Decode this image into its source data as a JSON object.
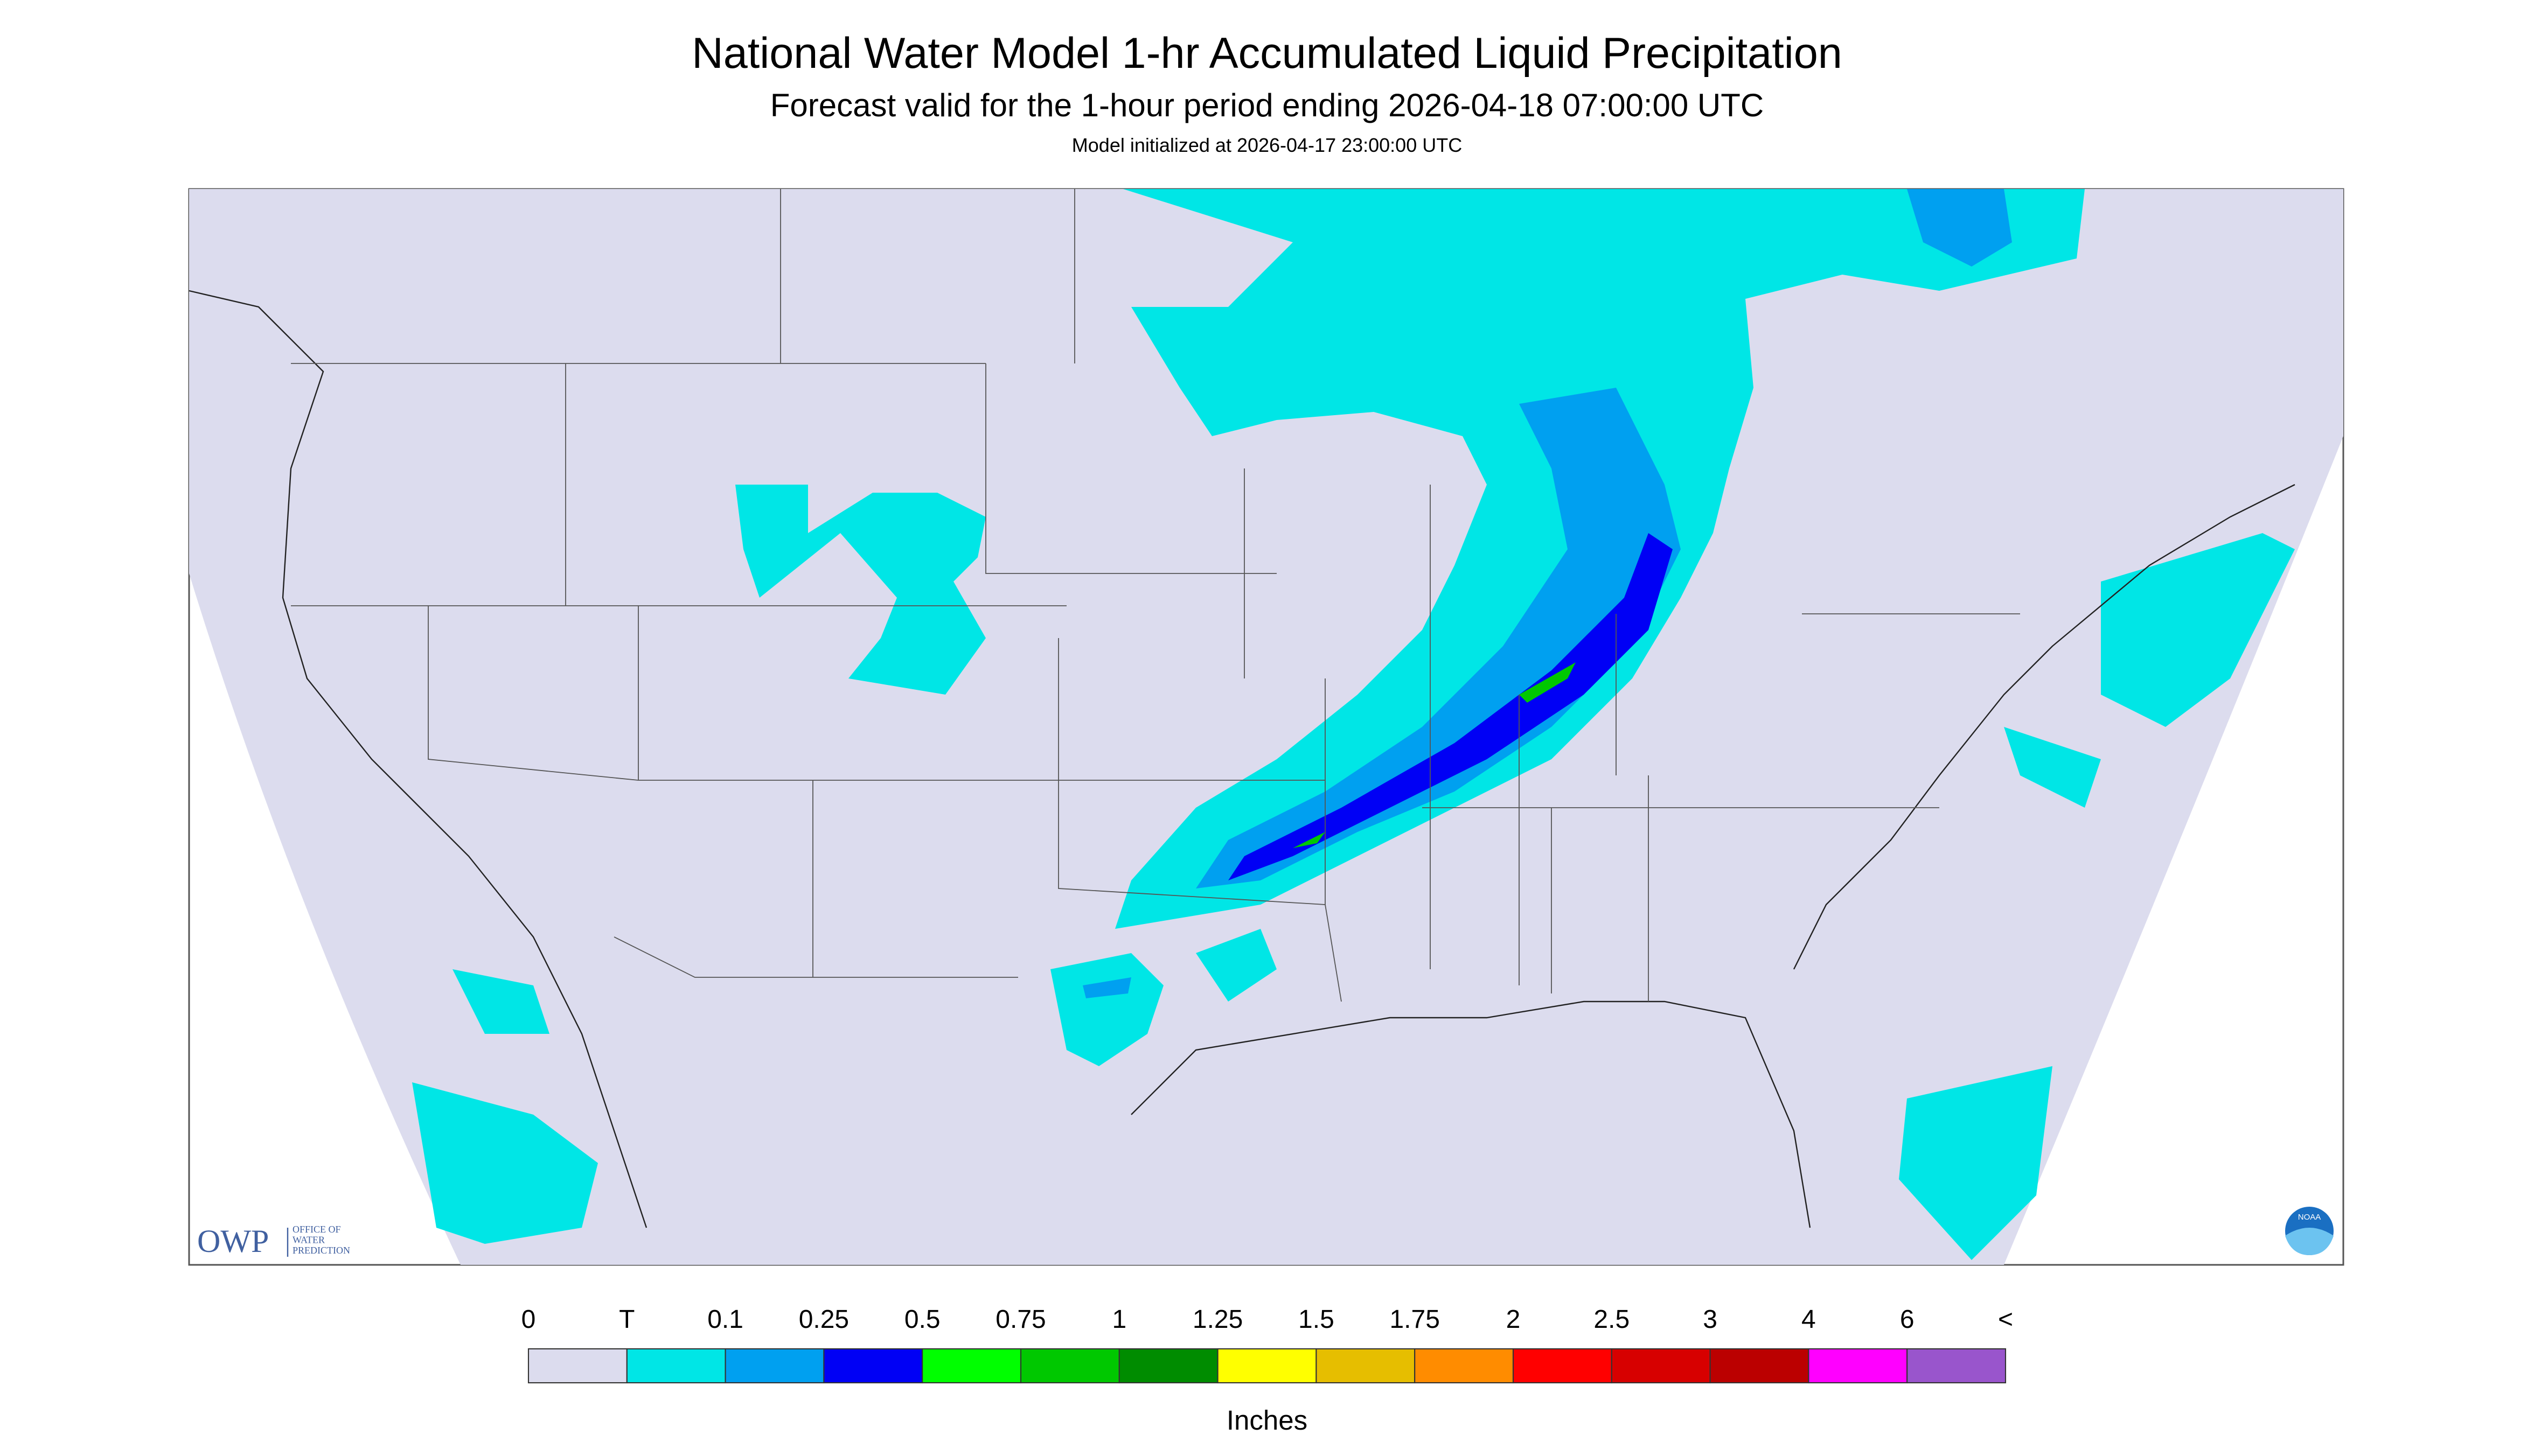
{
  "header": {
    "title": "National Water Model 1-hr Accumulated Liquid Precipitation",
    "subtitle": "Forecast valid for the 1-hour period ending 2026-04-18 07:00:00 UTC",
    "initialized": "Model initialized at 2026-04-17 23:00:00 UTC"
  },
  "logos": {
    "owp": "OWP",
    "owp_full": [
      "OFFICE OF",
      "WATER",
      "PREDICTION"
    ],
    "noaa": "NOAA"
  },
  "legend": {
    "labels": [
      "0",
      "T",
      "0.1",
      "0.25",
      "0.5",
      "0.75",
      "1",
      "1.25",
      "1.5",
      "1.75",
      "2",
      "2.5",
      "3",
      "4",
      "6",
      "<"
    ],
    "colors": [
      "#dcdcee",
      "#00e6e6",
      "#00a0f0",
      "#0000f5",
      "#00ff00",
      "#00c800",
      "#008c00",
      "#ffff00",
      "#e6be00",
      "#ff8c00",
      "#ff0000",
      "#d70000",
      "#bb0000",
      "#ff00ff",
      "#9955cc"
    ],
    "units": "Inches"
  }
}
